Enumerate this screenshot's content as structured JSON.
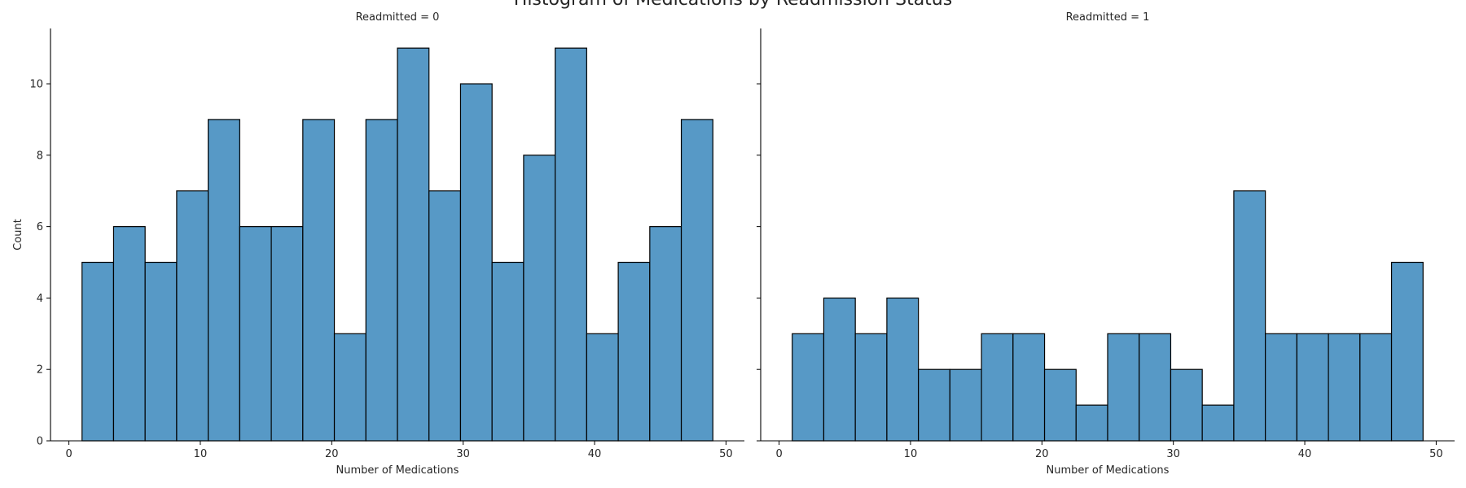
{
  "chart_data": {
    "type": "bar",
    "title": "Histogram of Medications by Readmission Status",
    "xlabel": "Number of Medications",
    "ylabel": "Count",
    "xlim": [
      -1.4,
      51.4
    ],
    "ylim": [
      0,
      11.55
    ],
    "xticks": [
      0,
      10,
      20,
      30,
      40,
      50
    ],
    "yticks": [
      0,
      2,
      4,
      6,
      8,
      10
    ],
    "bin_edges": [
      1.0,
      3.4,
      5.8,
      8.2,
      10.6,
      13.0,
      15.4,
      17.8,
      20.2,
      22.6,
      25.0,
      27.4,
      29.8,
      32.2,
      34.6,
      37.0,
      39.4,
      41.8,
      44.2,
      46.6,
      49.0
    ],
    "bar_color": "#5799c6",
    "edge_color": "#000000",
    "facets": [
      {
        "title": "Readmitted = 0",
        "counts": [
          5,
          6,
          5,
          7,
          9,
          6,
          6,
          9,
          3,
          9,
          11,
          7,
          10,
          5,
          8,
          11,
          3,
          5,
          6,
          9
        ]
      },
      {
        "title": "Readmitted = 1",
        "counts": [
          3,
          4,
          3,
          4,
          2,
          2,
          3,
          3,
          2,
          1,
          3,
          3,
          2,
          1,
          7,
          3,
          3,
          3,
          3,
          5
        ]
      }
    ]
  }
}
